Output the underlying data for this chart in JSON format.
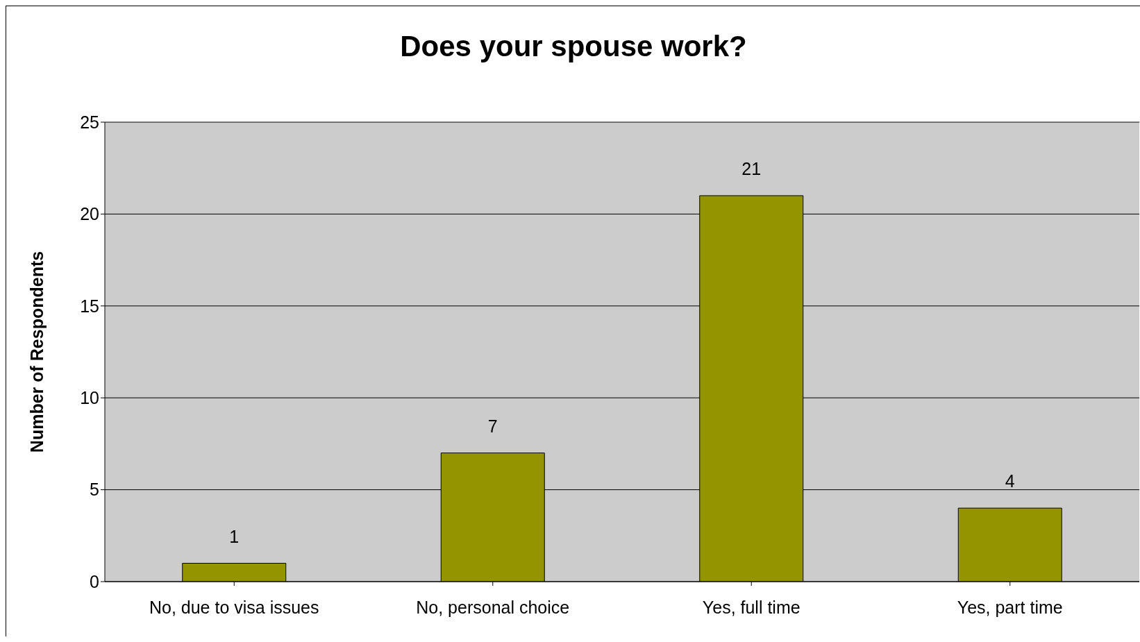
{
  "chart_data": {
    "type": "bar",
    "title": "Does your spouse work?",
    "ylabel": "Number of Respondents",
    "categories": [
      "No, due to visa issues",
      "No, personal choice",
      "Yes, full time",
      "Yes, part time"
    ],
    "values": [
      1,
      7,
      21,
      4
    ],
    "color": "#949400",
    "ylim": [
      0,
      25
    ],
    "yticks": [
      0,
      5,
      10,
      15,
      20,
      25
    ],
    "grid": "y",
    "data_labels": true
  }
}
